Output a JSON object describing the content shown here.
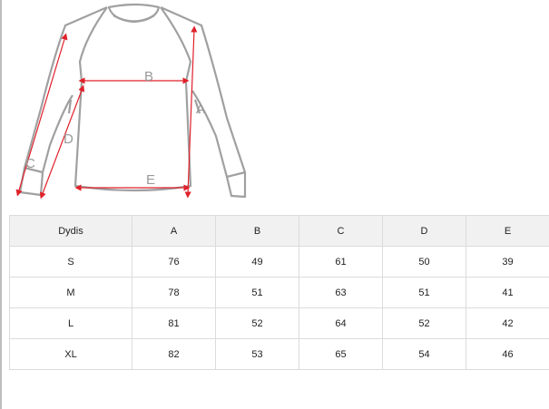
{
  "diagram": {
    "labels": {
      "A": "A",
      "B": "B",
      "C": "C",
      "D": "D",
      "E": "E"
    },
    "colors": {
      "outline": "#a0a0a0",
      "arrow": "#e0202a"
    }
  },
  "size_table": {
    "headers": [
      "Dydis",
      "A",
      "B",
      "C",
      "D",
      "E"
    ],
    "rows": [
      [
        "S",
        "76",
        "49",
        "61",
        "50",
        "39"
      ],
      [
        "M",
        "78",
        "51",
        "63",
        "51",
        "41"
      ],
      [
        "L",
        "81",
        "52",
        "64",
        "52",
        "42"
      ],
      [
        "XL",
        "82",
        "53",
        "65",
        "54",
        "46"
      ]
    ]
  }
}
